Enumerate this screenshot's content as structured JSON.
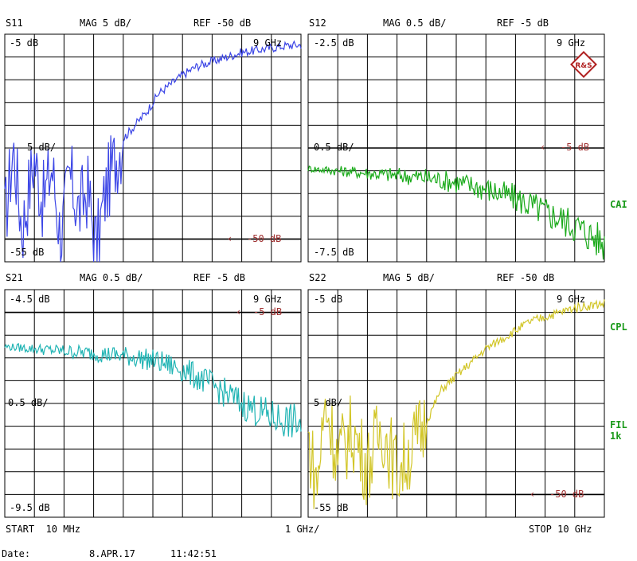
{
  "date_line": {
    "label": "Date:",
    "date": "8.APR.17",
    "time": "11:42:51"
  },
  "footer": {
    "start": "START  10 MHz",
    "div": "1 GHz/",
    "stop": "STOP 10 GHz"
  },
  "side_labels": {
    "cai": "CAI",
    "cpl": "CPL",
    "fil": "FIL",
    "fil_sub": "1k"
  },
  "colors": {
    "s11": "#3c46e6",
    "s12": "#1aaa1a",
    "s21": "#20b4b4",
    "s22": "#d2c628",
    "ref_marker": "#a03030",
    "grid": "#000000"
  },
  "logo_text": "R&S",
  "chart_data": [
    {
      "type": "line",
      "param": "S11",
      "header": {
        "name": "S11",
        "mag": "MAG 5 dB/",
        "ref": "REF -50 dB"
      },
      "top_left": "-5 dB",
      "top_right": "9 GHz",
      "mid_label": "5 dB/",
      "bottom_left": "-55 dB",
      "ref_label": "-50 dB",
      "ref_level": -50,
      "ylim": [
        -55,
        -5
      ],
      "xlim": [
        0.01,
        10
      ],
      "x_unit": "GHz",
      "color": "#3c46e6",
      "series": [
        {
          "x": [
            0.01,
            0.3,
            0.6,
            1.0,
            1.3,
            1.6,
            1.9,
            2.2,
            2.5,
            2.8,
            3.1,
            3.4,
            3.7,
            4.0,
            4.4,
            4.8,
            5.2,
            5.6,
            6.0,
            6.5,
            7.0,
            7.5,
            8.0,
            8.5,
            9.0,
            9.5,
            10.0
          ],
          "y": [
            -46,
            -30,
            -48,
            -32,
            -42,
            -34,
            -50,
            -36,
            -44,
            -39,
            -52,
            -40,
            -33,
            -28,
            -25,
            -22,
            -18,
            -16,
            -14,
            -12,
            -11,
            -10,
            -9,
            -8.5,
            -8,
            -7.5,
            -7.3
          ]
        }
      ]
    },
    {
      "type": "line",
      "param": "S12",
      "header": {
        "name": "S12",
        "mag": "MAG 0.5 dB/",
        "ref": "REF -5 dB"
      },
      "top_left": "-2.5 dB",
      "top_right": "9 GHz",
      "mid_label": "0.5 dB/",
      "bottom_left": "-7.5 dB",
      "ref_label": "-5 dB",
      "ref_level": -5,
      "ylim": [
        -7.5,
        -2.5
      ],
      "xlim": [
        0.01,
        10
      ],
      "x_unit": "GHz",
      "color": "#1aaa1a",
      "series": [
        {
          "x": [
            0.01,
            1,
            2,
            3,
            4,
            5,
            6,
            7,
            8,
            9,
            10
          ],
          "y": [
            -5.45,
            -5.5,
            -5.55,
            -5.6,
            -5.65,
            -5.75,
            -5.9,
            -6.1,
            -6.4,
            -6.7,
            -7.1
          ]
        }
      ]
    },
    {
      "type": "line",
      "param": "S21",
      "header": {
        "name": "S21",
        "mag": "MAG 0.5 dB/",
        "ref": "REF -5 dB"
      },
      "top_left": "-4.5 dB",
      "top_right": "9 GHz",
      "mid_label": "0.5 dB/",
      "bottom_left": "-9.5 dB",
      "ref_label": "-5 dB",
      "ref_level": -5,
      "ylim": [
        -9.5,
        -4.5
      ],
      "xlim": [
        0.01,
        10
      ],
      "x_unit": "GHz",
      "color": "#20b4b4",
      "series": [
        {
          "x": [
            0.01,
            1,
            2,
            3,
            4,
            5,
            6,
            7,
            8,
            9,
            10
          ],
          "y": [
            -5.75,
            -5.8,
            -5.85,
            -5.9,
            -5.95,
            -6.05,
            -6.25,
            -6.6,
            -7.0,
            -7.3,
            -7.45
          ]
        }
      ]
    },
    {
      "type": "line",
      "param": "S22",
      "header": {
        "name": "S22",
        "mag": "MAG 5 dB/",
        "ref": "REF -50 dB"
      },
      "top_left": "-5 dB",
      "top_right": "9 GHz",
      "mid_label": "5 dB/",
      "bottom_left": "-55 dB",
      "ref_label": "-50 dB",
      "ref_level": -50,
      "ylim": [
        -55,
        -5
      ],
      "xlim": [
        0.01,
        10
      ],
      "x_unit": "GHz",
      "color": "#d2c628",
      "series": [
        {
          "x": [
            0.01,
            0.3,
            0.6,
            1.0,
            1.5,
            2.0,
            2.5,
            3.0,
            3.5,
            4.0,
            4.5,
            5.0,
            5.5,
            6.0,
            6.5,
            7.0,
            7.5,
            8.0,
            8.5,
            9.0,
            9.5,
            10.0
          ],
          "y": [
            -38,
            -48,
            -30,
            -42,
            -36,
            -44,
            -35,
            -45,
            -40,
            -34,
            -27,
            -24,
            -21,
            -18,
            -16,
            -14,
            -12,
            -11,
            -10,
            -9,
            -8.5,
            -8
          ]
        }
      ]
    }
  ]
}
